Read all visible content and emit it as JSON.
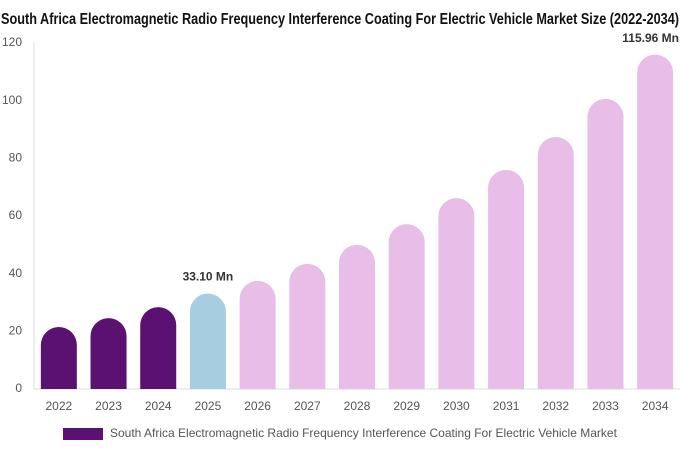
{
  "chart_data": {
    "type": "bar",
    "title": "South Africa Electromagnetic Radio Frequency Interference Coating For Electric Vehicle Market Size (2022-2034)",
    "categories": [
      "2022",
      "2023",
      "2024",
      "2025",
      "2026",
      "2027",
      "2028",
      "2029",
      "2030",
      "2031",
      "2032",
      "2033",
      "2034"
    ],
    "series": [
      {
        "name": "South Africa Electromagnetic Radio Frequency Interference Coating For Electric Vehicle Market",
        "color": "#5a1172",
        "colors": [
          "#5a1172",
          "#5a1172",
          "#5a1172",
          "#a7cde0",
          "#e8bde8",
          "#e8bde8",
          "#e8bde8",
          "#e8bde8",
          "#e8bde8",
          "#e8bde8",
          "#e8bde8",
          "#e8bde8",
          "#e8bde8"
        ],
        "values": [
          21.5,
          24.6,
          28.4,
          33.1,
          37.5,
          43.4,
          50,
          57.2,
          66.2,
          76,
          87.4,
          100.6,
          115.96
        ],
        "value_labels": [
          null,
          null,
          null,
          "33.10 Mn",
          null,
          null,
          null,
          null,
          null,
          null,
          null,
          null,
          "115.96 Mn"
        ]
      }
    ],
    "ylim": [
      0,
      120
    ],
    "yticks": [
      0,
      20,
      40,
      60,
      80,
      100,
      120
    ],
    "grid": false
  }
}
